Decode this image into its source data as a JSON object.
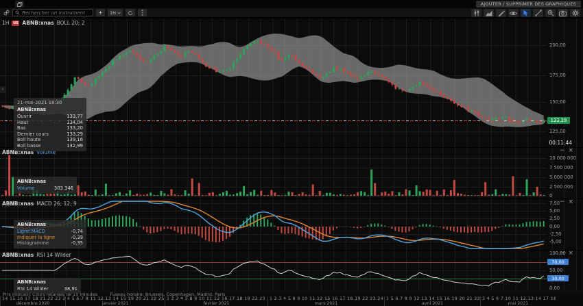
{
  "titlebar": {
    "add_remove_button": "AJOUTER / SUPPRIMER DES GRAPHIQUES"
  },
  "toolbar": {
    "search_placeholder": "Rechercher un instrument",
    "add_button": "+",
    "timeframe": "1H",
    "right_tools": [
      {
        "name": "chart-type",
        "active": false
      },
      {
        "name": "indicators",
        "active": false
      },
      {
        "name": "draw",
        "active": false
      },
      {
        "name": "visibility",
        "active": false
      },
      {
        "name": "cursor",
        "active": true
      },
      {
        "name": "trendline",
        "active": false
      },
      {
        "name": "zoom",
        "active": false
      },
      {
        "name": "screenshot",
        "active": false
      },
      {
        "name": "settings",
        "active": false
      }
    ]
  },
  "window_controls": {
    "minimize": "−",
    "close": "×"
  },
  "main_chart": {
    "timeframe": "1H",
    "flag": "US",
    "symbol": "ABNB:xnas",
    "indicator": "BOLL 20; 2",
    "axis_ticks": [
      "200,00",
      "175,00",
      "150,00",
      "125,00"
    ],
    "last_price": "133,29",
    "countdown": "00:11:44",
    "collapse_chevron": "⌄",
    "edge_button": "‹",
    "tooltip": {
      "date": "21-mai-2021 18:30",
      "symbol": "ABNB:xnas",
      "rows": [
        {
          "label": "Ouvrir",
          "value": "133,77"
        },
        {
          "label": "Haut",
          "value": "134,04"
        },
        {
          "label": "Bas",
          "value": "133,20"
        },
        {
          "label": "Dernier cours",
          "value": "133,29"
        },
        {
          "label": "Boll haute",
          "value": "139,16"
        },
        {
          "label": "Boll basse",
          "value": "132,99"
        }
      ]
    }
  },
  "volume_panel": {
    "symbol": "ABNB:xnas",
    "indicator": "Volume",
    "axis_ticks": [
      "10 000 000",
      "7 500 000",
      "5 000 000",
      "2 500 000",
      "0"
    ],
    "tooltip": {
      "symbol": "ABNB:xnas",
      "label": "Volume",
      "value": "303 346"
    }
  },
  "macd_panel": {
    "symbol": "ABNB:xnas",
    "indicator": "MACD 26; 12; 9",
    "axis_ticks": [
      "7,50",
      "5,00",
      "2,50",
      "0,00",
      "-2,50",
      "-5,00"
    ],
    "tooltip": {
      "symbol": "ABNB:xnas",
      "rows": [
        {
          "label": "Ligne MACD",
          "value": "-0,74",
          "color": "#4da3e0"
        },
        {
          "label": "Indiquer la ligne",
          "value": "-0,39",
          "color": "#e0862e"
        },
        {
          "label": "Histogramme",
          "value": "-0,35",
          "color": "#aaaaaa"
        }
      ]
    }
  },
  "rsi_panel": {
    "symbol": "ABNB:xnas",
    "indicator": "RSI 14 Wilder",
    "axis_ticks": [
      "100,00",
      "50,00",
      "0,00"
    ],
    "level_badges": [
      "70,00",
      "30,00"
    ],
    "tooltip": {
      "symbol": "ABNB:xnas",
      "label": "RSI 14 Wilder",
      "value": "38,91"
    }
  },
  "statusbar": {
    "notice": "Prix indicatif. Cours retardés de 15 minutes",
    "timezone": "Fuseau horaire: Brussels, Copenhagen, Madrid, Paris",
    "months": [
      {
        "label": "décembre 2020",
        "days": "14 15 16 17 18 21 22 23 28 29 30 31"
      },
      {
        "label": "janvier 2021",
        "days": "4 5 6 7 8 11 12 13 14 15 19 20 21 22 25 26 27 28 29"
      },
      {
        "label": "février 2021",
        "days": "1 2 3 4 5 8 9 10 11 12 16 17 18 19 22 23 24 25 26"
      },
      {
        "label": "mars 2021",
        "days": "1 2 3 4 5 8 9 10 11 12 15 16 17 18 19 22 23 24 25 26 29 30 31"
      },
      {
        "label": "avril 2021",
        "days": "1 5 6 7 8 9 12 13 14 15 16 19 20 21 22 23 26 27 28 29 30"
      },
      {
        "label": "mai 2021",
        "days": "3 4 5 6 7 10 11 12 13 14 17 18 19 20 21"
      }
    ]
  },
  "colors": {
    "candle_up": "#2fa35a",
    "candle_down": "#c24a42",
    "band_fill": "rgba(168,168,168,0.60)",
    "macd_line": "#4da3e0",
    "signal_line": "#e0862e",
    "rsi_line": "#d4d4d4",
    "rsi_upper_line": "#8f3a32",
    "rsi_lower_line": "#2f7d46",
    "price_badge_bg": "#1f8f4f",
    "level_badge_bg": "#3f7fd1",
    "grid": "#1d1d1d"
  }
}
